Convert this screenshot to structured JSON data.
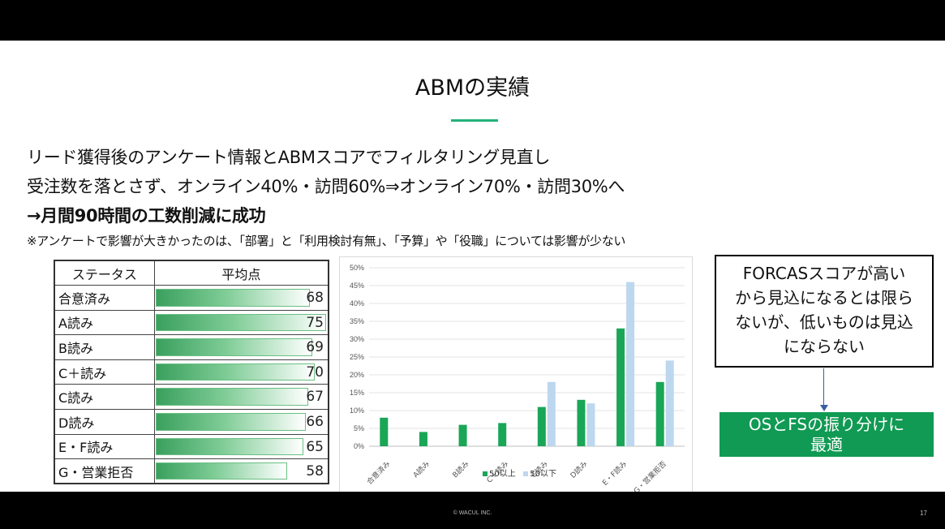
{
  "slide": {
    "title": "ABMの実績",
    "bullets": [
      "リード獲得後のアンケート情報とABMスコアでフィルタリング見直し",
      "受注数を落とさず、オンライン40%・訪問60%⇒オンライン70%・訪問30%へ",
      "→月間90時間の工数削減に成功"
    ],
    "note": "※アンケートで影響が大きかったのは、「部署」と「利用検討有無」、「予算」や「役職」については影響が少ない",
    "accent_color": "#23b37a"
  },
  "table": {
    "headers": [
      "ステータス",
      "平均点"
    ],
    "rows": [
      {
        "status": "合意済み",
        "score": 68
      },
      {
        "status": "A読み",
        "score": 75
      },
      {
        "status": "B読み",
        "score": 69
      },
      {
        "status": "C＋読み",
        "score": 70
      },
      {
        "status": "C読み",
        "score": 67
      },
      {
        "status": "D読み",
        "score": 66
      },
      {
        "status": "E・F読み",
        "score": 65
      },
      {
        "status": "G・営業拒否",
        "score": 58
      }
    ],
    "scale_max": 75
  },
  "chart_data": {
    "type": "bar",
    "categories": [
      "合意済み",
      "A読み",
      "B読み",
      "C＋読み",
      "C読み",
      "D読み",
      "E・F読み",
      "G・営業拒否"
    ],
    "series": [
      {
        "name": "50以上",
        "values": [
          8,
          4,
          6,
          6.5,
          11,
          13,
          33,
          18
        ],
        "color": "#1aa657"
      },
      {
        "name": "50以下",
        "values": [
          0,
          0,
          0,
          0,
          18,
          12,
          46,
          24
        ],
        "color": "#bdd7ee"
      }
    ],
    "y_ticks": [
      "0%",
      "5%",
      "10%",
      "15%",
      "20%",
      "25%",
      "30%",
      "35%",
      "40%",
      "45%",
      "50%"
    ],
    "ylim": [
      0,
      50
    ],
    "grid": true,
    "legend_position": "bottom"
  },
  "callout": {
    "text_lines": [
      "FORCASスコアが高い",
      "から見込になるとは限ら",
      "ないが、低いものは見込",
      "にならない"
    ],
    "conclusion_lines": [
      "OSとFSの振り分けに",
      "最適"
    ]
  },
  "footer": {
    "copyright": "© WACUL INC.",
    "page": "17"
  }
}
